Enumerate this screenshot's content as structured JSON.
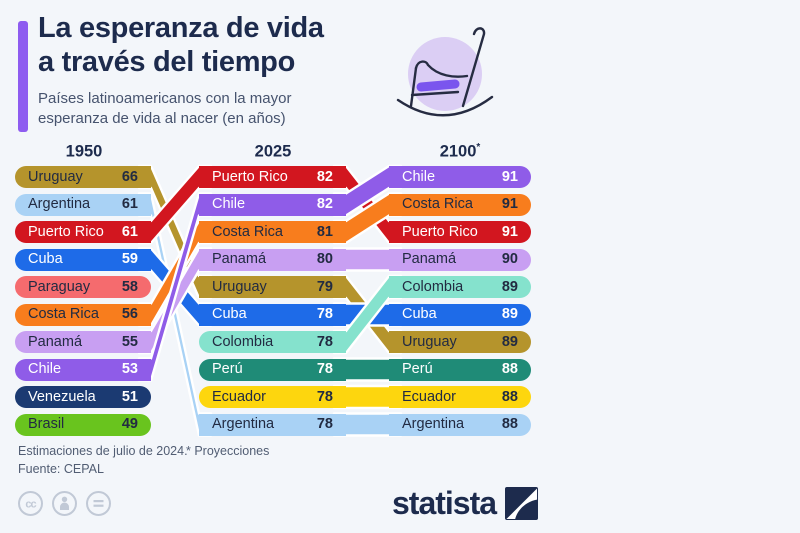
{
  "theme": {
    "background": "#f3f6fa",
    "title_color": "#1d2b4d",
    "subtitle_color": "#46536e",
    "accent_bar_color": "#8e5cf0",
    "footnote_color": "#515d73",
    "pill_dark_text": "#222b42",
    "pill_light_text": "#ffffff",
    "chair_circle_color": "#dbcef4",
    "chair_stroke_color": "#262c42",
    "chair_cushion_color": "#7a55ee",
    "cc_icon_color": "#c1c9d6",
    "brand_color": "#1d2b4d"
  },
  "header": {
    "title_line1": "La esperanza de vida",
    "title_line2": "a través del tiempo",
    "subtitle_line1": "Países latinoamericanos con la mayor",
    "subtitle_line2": "esperanza de vida al nacer (en años)"
  },
  "chart_data": {
    "type": "bump",
    "title": "La esperanza de vida a través del tiempo",
    "subtitle": "Países latinoamericanos con la mayor esperanza de vida al nacer (en años)",
    "value_unit": "años",
    "columns": [
      {
        "label": "1950",
        "suffix": ""
      },
      {
        "label": "2025",
        "suffix": ""
      },
      {
        "label": "2100",
        "suffix": "*"
      }
    ],
    "series": [
      {
        "name": "Uruguay",
        "color": "#b5942c",
        "text_style": "dark",
        "values": [
          66,
          79,
          89
        ],
        "ranks": [
          1,
          5,
          7
        ]
      },
      {
        "name": "Argentina",
        "color": "#a9d2f5",
        "text_style": "dark",
        "values": [
          61,
          78,
          88
        ],
        "ranks": [
          2,
          10,
          10
        ]
      },
      {
        "name": "Puerto Rico",
        "color": "#d2161f",
        "text_style": "light",
        "values": [
          61,
          82,
          91
        ],
        "ranks": [
          3,
          1,
          3
        ]
      },
      {
        "name": "Cuba",
        "color": "#1e6be8",
        "text_style": "light",
        "values": [
          59,
          78,
          89
        ],
        "ranks": [
          4,
          6,
          6
        ]
      },
      {
        "name": "Paraguay",
        "color": "#f56b6e",
        "text_style": "dark",
        "values": [
          58,
          null,
          null
        ],
        "ranks": [
          5,
          null,
          null
        ]
      },
      {
        "name": "Costa Rica",
        "color": "#f87d1d",
        "text_style": "dark",
        "values": [
          56,
          81,
          91
        ],
        "ranks": [
          6,
          3,
          2
        ]
      },
      {
        "name": "Panamá",
        "color": "#c89ff2",
        "text_style": "dark",
        "values": [
          55,
          80,
          90
        ],
        "ranks": [
          7,
          4,
          4
        ]
      },
      {
        "name": "Chile",
        "color": "#8f5ce8",
        "text_style": "light",
        "values": [
          53,
          82,
          91
        ],
        "ranks": [
          8,
          2,
          1
        ]
      },
      {
        "name": "Venezuela",
        "color": "#1b3a72",
        "text_style": "light",
        "values": [
          51,
          null,
          null
        ],
        "ranks": [
          9,
          null,
          null
        ]
      },
      {
        "name": "Brasil",
        "color": "#69c41e",
        "text_style": "dark",
        "values": [
          49,
          null,
          null
        ],
        "ranks": [
          10,
          null,
          null
        ]
      },
      {
        "name": "Colombia",
        "color": "#85e2cd",
        "text_style": "dark",
        "values": [
          null,
          78,
          89
        ],
        "ranks": [
          null,
          7,
          5
        ]
      },
      {
        "name": "Perú",
        "color": "#1f8b77",
        "text_style": "light",
        "values": [
          null,
          78,
          88
        ],
        "ranks": [
          null,
          8,
          8
        ]
      },
      {
        "name": "Ecuador",
        "color": "#fdd60e",
        "text_style": "dark",
        "values": [
          null,
          78,
          88
        ],
        "ranks": [
          null,
          9,
          9
        ]
      }
    ],
    "ribbon_order": [
      [
        "Argentina",
        "Uruguay",
        "Cuba",
        "Costa Rica",
        "Panamá",
        "Puerto Rico",
        "Chile"
      ],
      [
        "Argentina",
        "Ecuador",
        "Perú",
        "Panamá",
        "Uruguay",
        "Cuba",
        "Colombia",
        "Puerto Rico",
        "Costa Rica",
        "Chile"
      ]
    ],
    "legend_position": "none",
    "grid": false
  },
  "footer": {
    "note1": "Estimaciones de julio de 2024.",
    "note2": "* Proyecciones",
    "source": "Fuente: CEPAL",
    "license_icons": [
      "cc-icon",
      "attribution-person-icon",
      "equals-icon"
    ]
  },
  "branding": {
    "logo_text": "statista"
  }
}
